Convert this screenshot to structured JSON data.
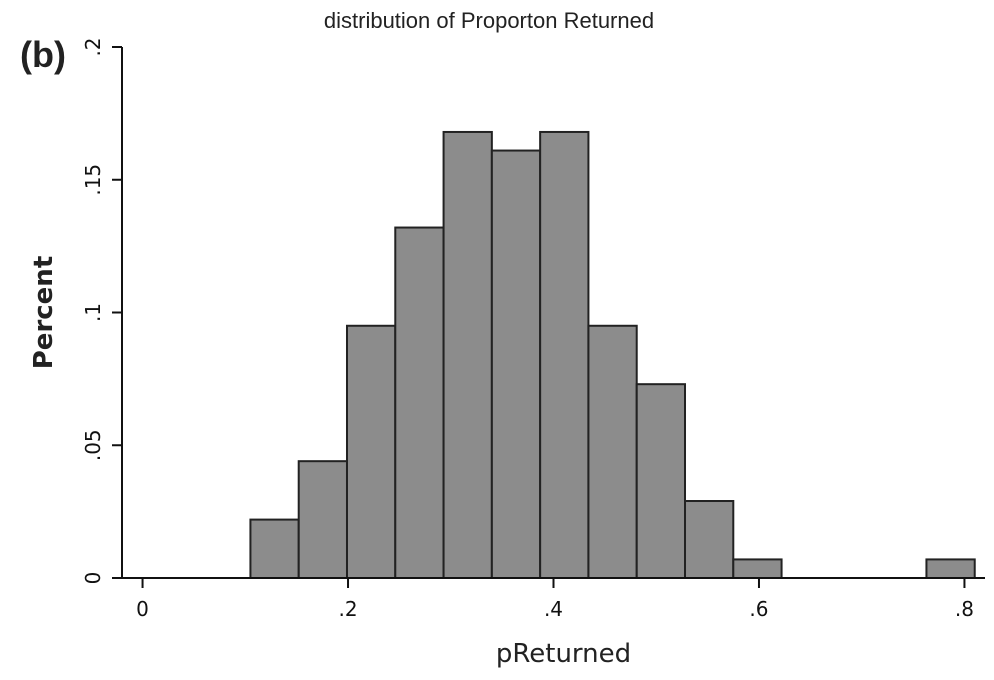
{
  "panel_label": "(b)",
  "chart_data": {
    "type": "bar",
    "title": "distribution of Proporton Returned",
    "xlabel": "pReturned",
    "ylabel": "Percent",
    "xlim": [
      -0.02,
      0.82
    ],
    "ylim": [
      0,
      0.2
    ],
    "xticks": [
      {
        "value": 0,
        "label": "0"
      },
      {
        "value": 0.2,
        "label": ".2"
      },
      {
        "value": 0.4,
        "label": ".4"
      },
      {
        "value": 0.6,
        "label": ".6"
      },
      {
        "value": 0.8,
        "label": ".8"
      }
    ],
    "yticks": [
      {
        "value": 0,
        "label": "0"
      },
      {
        "value": 0.05,
        "label": ".05"
      },
      {
        "value": 0.1,
        "label": ".1"
      },
      {
        "value": 0.15,
        "label": ".15"
      },
      {
        "value": 0.2,
        "label": ".2"
      }
    ],
    "bins": [
      {
        "x0": 0.105,
        "x1": 0.152,
        "value": 0.022
      },
      {
        "x0": 0.152,
        "x1": 0.199,
        "value": 0.044
      },
      {
        "x0": 0.199,
        "x1": 0.246,
        "value": 0.095
      },
      {
        "x0": 0.246,
        "x1": 0.293,
        "value": 0.132
      },
      {
        "x0": 0.293,
        "x1": 0.34,
        "value": 0.168
      },
      {
        "x0": 0.34,
        "x1": 0.387,
        "value": 0.161
      },
      {
        "x0": 0.387,
        "x1": 0.434,
        "value": 0.168
      },
      {
        "x0": 0.434,
        "x1": 0.481,
        "value": 0.095
      },
      {
        "x0": 0.481,
        "x1": 0.528,
        "value": 0.073
      },
      {
        "x0": 0.528,
        "x1": 0.575,
        "value": 0.029
      },
      {
        "x0": 0.575,
        "x1": 0.622,
        "value": 0.007
      },
      {
        "x0": 0.763,
        "x1": 0.81,
        "value": 0.007
      }
    ],
    "bar_color": "#8c8c8c",
    "edge_color": "#222222",
    "grid": false,
    "legend": "none"
  }
}
